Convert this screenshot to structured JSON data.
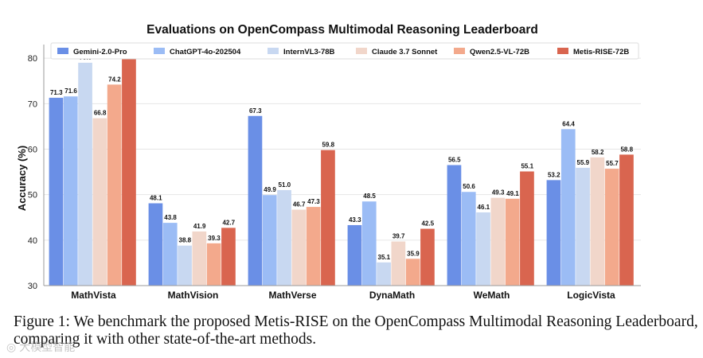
{
  "chart_data": {
    "type": "bar",
    "title": "Evaluations on OpenCompass Multimodal Reasoning Leaderboard",
    "xlabel": "",
    "ylabel": "Accuracy (%)",
    "ylim": [
      30,
      83
    ],
    "yticks": [
      "30",
      "40",
      "50",
      "60",
      "70",
      "80"
    ],
    "grid": true,
    "legend_position": "top",
    "categories": [
      "MathVista",
      "MathVision",
      "MathVerse",
      "DynaMath",
      "WeMath",
      "LogicVista"
    ],
    "series": [
      {
        "name": "Gemini-2.0-Pro",
        "color": "#6a8fe6",
        "values": [
          71.3,
          48.1,
          67.3,
          43.3,
          56.5,
          53.2
        ]
      },
      {
        "name": "ChatGPT-4o-202504",
        "color": "#9bbcf5",
        "values": [
          71.6,
          43.8,
          49.9,
          48.5,
          50.6,
          64.4
        ]
      },
      {
        "name": "InternVL3-78B",
        "color": "#c8d8f1",
        "values": [
          79.0,
          38.8,
          51.0,
          35.1,
          46.1,
          55.9
        ]
      },
      {
        "name": "Claude 3.7 Sonnet",
        "color": "#f1d6ca",
        "values": [
          66.8,
          41.9,
          46.7,
          39.7,
          49.3,
          58.2
        ]
      },
      {
        "name": "Qwen2.5-VL-72B",
        "color": "#f3a98c",
        "values": [
          74.2,
          39.3,
          47.3,
          35.9,
          49.1,
          55.7
        ]
      },
      {
        "name": "Metis-RISE-72B",
        "color": "#d9654f",
        "values": [
          80.4,
          42.7,
          59.8,
          42.5,
          55.1,
          58.8
        ]
      }
    ]
  },
  "caption": {
    "text": "Figure 1: We benchmark the proposed Metis-RISE on the OpenCompass Multimodal Reasoning Leaderboard, comparing it with other state-of-the-art methods."
  },
  "watermark": {
    "icon": "camera-icon",
    "text": "大模型智能"
  }
}
